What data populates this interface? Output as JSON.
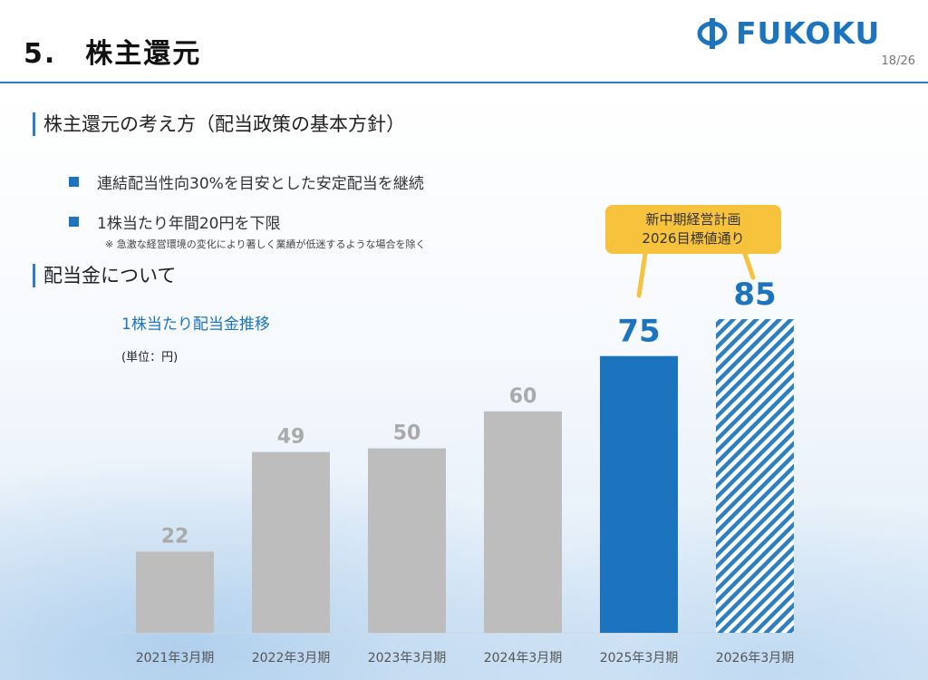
{
  "header": {
    "title": "5.　株主還元",
    "logo_text": "FUKOKU",
    "page_number": "18/26"
  },
  "policy": {
    "heading": "株主還元の考え方（配当政策の基本方針）",
    "bullets": [
      "連結配当性向30%を目安とした安定配当を継続",
      "1株当たり年間20円を下限"
    ],
    "note": "※ 急激な経営環境の変化により著しく業績が低迷するような場合を除く"
  },
  "dividend": {
    "heading": "配当金について",
    "chart_title": "1株当たり配当金推移",
    "unit": "(単位：円)"
  },
  "callout": {
    "line1": "新中期経営計画",
    "line2": "2026目標値通り"
  },
  "colors": {
    "accent": "#1b74bd",
    "gray_bar": "#bdbdbd",
    "callout": "#f7c23c",
    "hatch": "#2b7fc2"
  },
  "chart_data": {
    "type": "bar",
    "categories": [
      "2021年3月期",
      "2022年3月期",
      "2023年3月期",
      "2024年3月期",
      "2025年3月期",
      "2026年3月期"
    ],
    "values": [
      22,
      49,
      50,
      60,
      75,
      85
    ],
    "styles": [
      "gray",
      "gray",
      "gray",
      "gray",
      "solid-blue",
      "hatched-blue"
    ],
    "ylim": [
      0,
      85
    ],
    "grid": false,
    "title": "1株当たり配当金推移",
    "ylabel": "(単位：円)"
  }
}
